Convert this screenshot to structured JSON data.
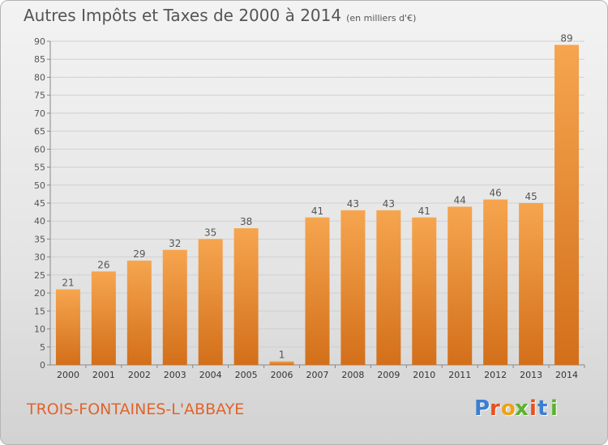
{
  "page": {
    "title": "Autres Impôts et Taxes de 2000 à 2014",
    "unit": "(en milliers d'€)",
    "commune": "TROIS-FONTAINES-L'ABBAYE",
    "logo_text": "Proxiti"
  },
  "colors": {
    "bar_top": "#f6a54f",
    "bar_bottom": "#d36f1a",
    "grid": "#d0d0d0",
    "commune_text": "#e0642c"
  },
  "chart_data": {
    "type": "bar",
    "title": "Autres Impôts et Taxes de 2000 à 2014",
    "xlabel": "",
    "ylabel": "",
    "categories": [
      "2000",
      "2001",
      "2002",
      "2003",
      "2004",
      "2005",
      "2006",
      "2007",
      "2008",
      "2009",
      "2010",
      "2011",
      "2012",
      "2013",
      "2014"
    ],
    "values": [
      21,
      26,
      29,
      32,
      35,
      38,
      1,
      41,
      43,
      43,
      41,
      44,
      46,
      45,
      89
    ],
    "ylim": [
      0,
      90
    ],
    "yticks": [
      0,
      5,
      10,
      15,
      20,
      25,
      30,
      35,
      40,
      45,
      50,
      55,
      60,
      65,
      70,
      75,
      80,
      85,
      90
    ],
    "grid": true,
    "data_labels": true
  }
}
